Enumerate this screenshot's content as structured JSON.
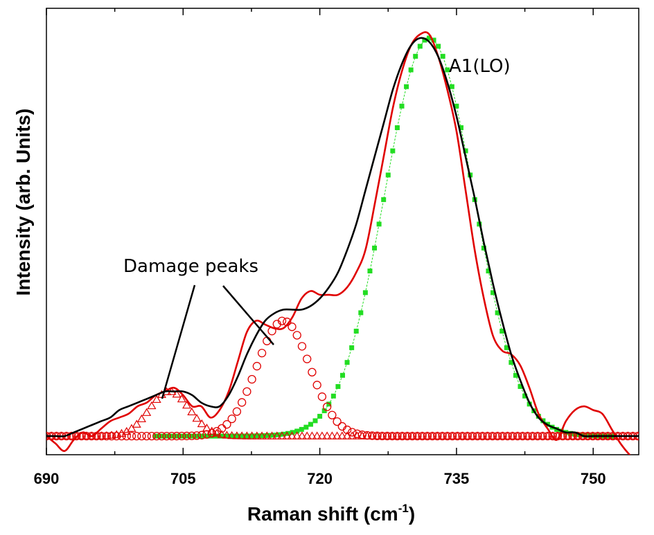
{
  "chart_data": {
    "type": "line",
    "xlabel": "Raman shift (cm",
    "xlabel_sup": "-1",
    "xlabel_suffix": ")",
    "ylabel": "Intensity (arb. Units)",
    "xlim": [
      690,
      755
    ],
    "ylim": [
      -0.05,
      1.15
    ],
    "x_ticks": [
      690,
      705,
      720,
      735,
      750
    ],
    "x_tick_labels": [
      "690",
      "705",
      "720",
      "735",
      "750"
    ],
    "x_minor_ticks": [
      697.5,
      712.5,
      727.5,
      742.5
    ],
    "grid": false,
    "annotations": [
      {
        "text": "A1(LO)"
      },
      {
        "text": "Damage peaks"
      }
    ],
    "series": [
      {
        "role": "measured",
        "color": "#e00000",
        "style": "line",
        "x": [
          690,
          691,
          692,
          693,
          694,
          695,
          696,
          697,
          698,
          699,
          700,
          701,
          702,
          703,
          704,
          705,
          706,
          707,
          708,
          709,
          710,
          711,
          712,
          713,
          714,
          715,
          716,
          717,
          718,
          719,
          720,
          721,
          722,
          723,
          724,
          725,
          726,
          727,
          728,
          729,
          730,
          731,
          732,
          733,
          734,
          735,
          736,
          737,
          738,
          739,
          740,
          741,
          742,
          743,
          744,
          745,
          746,
          747,
          748,
          749,
          750,
          751,
          752,
          753,
          754,
          755
        ],
        "y": [
          0.0,
          -0.02,
          -0.04,
          -0.01,
          0.01,
          0.0,
          0.02,
          0.04,
          0.05,
          0.06,
          0.08,
          0.09,
          0.11,
          0.12,
          0.13,
          0.11,
          0.08,
          0.08,
          0.05,
          0.07,
          0.12,
          0.2,
          0.28,
          0.31,
          0.3,
          0.29,
          0.29,
          0.32,
          0.37,
          0.39,
          0.38,
          0.38,
          0.38,
          0.4,
          0.44,
          0.5,
          0.62,
          0.75,
          0.88,
          0.98,
          1.05,
          1.08,
          1.08,
          1.02,
          0.93,
          0.82,
          0.66,
          0.5,
          0.37,
          0.27,
          0.23,
          0.22,
          0.19,
          0.13,
          0.06,
          0.02,
          -0.01,
          0.04,
          0.07,
          0.08,
          0.07,
          0.06,
          0.02,
          -0.02,
          -0.05,
          -0.07
        ]
      },
      {
        "role": "fit",
        "color": "#000000",
        "style": "line",
        "x": [
          690,
          691,
          692,
          693,
          694,
          695,
          696,
          697,
          698,
          699,
          700,
          701,
          702,
          703,
          704,
          705,
          706,
          707,
          708,
          709,
          710,
          711,
          712,
          713,
          714,
          715,
          716,
          717,
          718,
          719,
          720,
          721,
          722,
          723,
          724,
          725,
          726,
          727,
          728,
          729,
          730,
          731,
          732,
          733,
          734,
          735,
          736,
          737,
          738,
          739,
          740,
          741,
          742,
          743,
          744,
          745,
          746,
          747,
          748,
          749,
          750,
          751,
          752,
          753,
          754,
          755
        ],
        "y": [
          0.0,
          0.0,
          0.0,
          0.01,
          0.02,
          0.03,
          0.04,
          0.05,
          0.07,
          0.08,
          0.09,
          0.1,
          0.11,
          0.12,
          0.12,
          0.12,
          0.11,
          0.09,
          0.08,
          0.08,
          0.11,
          0.16,
          0.22,
          0.27,
          0.31,
          0.33,
          0.34,
          0.34,
          0.34,
          0.35,
          0.37,
          0.4,
          0.44,
          0.5,
          0.57,
          0.66,
          0.75,
          0.84,
          0.93,
          1.0,
          1.05,
          1.07,
          1.06,
          1.02,
          0.95,
          0.86,
          0.75,
          0.64,
          0.52,
          0.41,
          0.31,
          0.22,
          0.15,
          0.09,
          0.05,
          0.03,
          0.02,
          0.01,
          0.01,
          0.0,
          0.0,
          0.0,
          0.0,
          0.0,
          0.0,
          0.0
        ]
      },
      {
        "role": "A1(LO) peak",
        "color": "#22dd22",
        "style": "square-markers",
        "center": 732,
        "amplitude": 1.07,
        "sigma": 4.9,
        "x_from": 702,
        "x_to": 752
      },
      {
        "role": "damage peak 2",
        "color": "#e00000",
        "style": "circle-markers",
        "center": 716,
        "amplitude": 0.31,
        "sigma": 2.9,
        "x_from": 690,
        "x_to": 755
      },
      {
        "role": "damage peak 1",
        "color": "#e00000",
        "style": "triangle-markers",
        "center": 703.5,
        "amplitude": 0.12,
        "sigma": 2.2,
        "x_from": 690,
        "x_to": 755
      }
    ]
  }
}
